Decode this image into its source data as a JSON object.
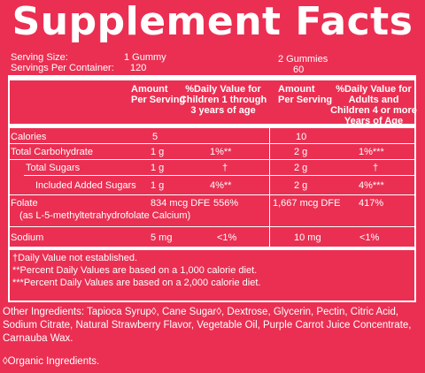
{
  "title": "Supplement Facts",
  "serving": {
    "size_label": "Serving Size:",
    "size_value": "1 Gummy",
    "per_container_label": "Servings Per Container:",
    "per_container_value": "120",
    "size_value_2": "2 Gummies",
    "per_container_value_2": "60"
  },
  "headers": {
    "amount_1": [
      "Amount",
      "Per Serving"
    ],
    "dv_children": [
      "%Daily Value for",
      "Children 1 through",
      "3 years of age"
    ],
    "amount_2": [
      "Amount",
      "Per Serving"
    ],
    "dv_adults": [
      "%Daily Value for",
      "Adults and",
      "Children 4 or more",
      "Years of Age"
    ]
  },
  "rows": [
    {
      "name": "Calories",
      "amount_1": "5",
      "dv_1": "",
      "amount_2": "10",
      "dv_2": ""
    },
    {
      "name": "Total Carbohydrate",
      "amount_1": "1 g",
      "dv_1": "1%**",
      "amount_2": "2 g",
      "dv_2": "1%***"
    },
    {
      "name": "Total Sugars",
      "amount_1": "1 g",
      "dv_1": "†",
      "amount_2": "2 g",
      "dv_2": "†"
    },
    {
      "name": "Included Added Sugars",
      "amount_1": "1 g",
      "dv_1": "4%**",
      "amount_2": "2 g",
      "dv_2": "4%***"
    },
    {
      "name": "Folate",
      "sub": "(as L-5-methyltetrahydrofolate Calcium)",
      "amount_1": "834 mcg DFE",
      "dv_1": "556%",
      "amount_2": "1,667 mcg DFE",
      "dv_2": "417%"
    },
    {
      "name": "Sodium",
      "amount_1": "5 mg",
      "dv_1": "<1%",
      "amount_2": "10 mg",
      "dv_2": "<1%"
    }
  ],
  "footnotes": [
    "†Daily Value not established.",
    "**Percent Daily Values are based on a 1,000 calorie diet.",
    "***Percent Daily Values are based on a 2,000 calorie diet."
  ],
  "other_ingredients": "Other Ingredients: Tapioca Syrup◊, Cane Sugar◊, Dextrose, Glycerin, Pectin, Citric Acid, Sodium Citrate, Natural Strawberry Flavor, Vegetable Oil, Purple Carrot Juice Concentrate, Carnauba Wax.",
  "organic_note": "◊Organic Ingredients."
}
